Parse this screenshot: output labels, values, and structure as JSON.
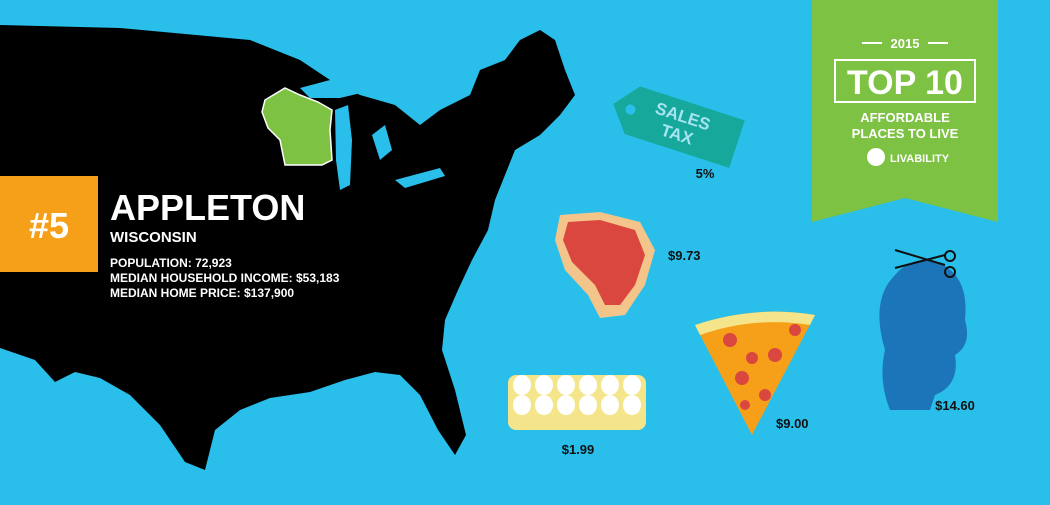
{
  "badge": {
    "year": "2015",
    "title": "TOP 10",
    "subtitle_lines": [
      "AFFORDABLE",
      "PLACES TO LIVE"
    ],
    "brand": "LIVABILITY"
  },
  "city": {
    "rank": "#5",
    "name": "APPLETON",
    "state": "WISCONSIN",
    "stats": [
      "POPULATION: 72,923",
      "MEDIAN HOUSEHOLD INCOME: $53,183",
      "MEDIAN HOME PRICE: $137,900"
    ]
  },
  "sales_tax": {
    "label_lines": [
      "SALES",
      "TAX"
    ],
    "value": "5%"
  },
  "costs": [
    "$9.73",
    "$1.99",
    "$9.00",
    "$14.60"
  ]
}
